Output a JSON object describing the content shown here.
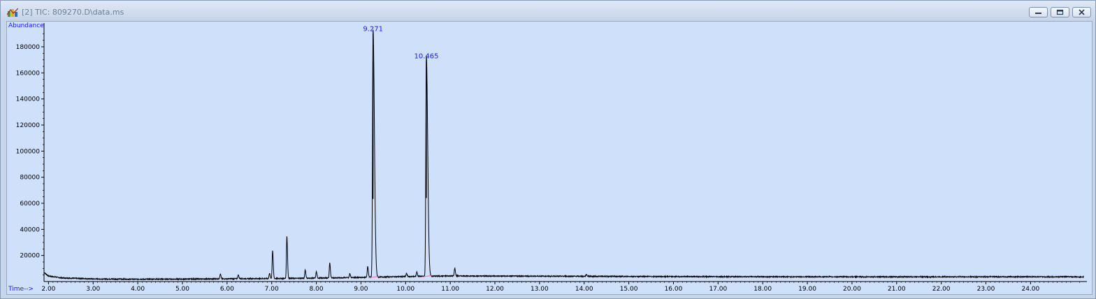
{
  "window": {
    "title": "[2] TIC: 809270.D\\data.ms"
  },
  "icons": {
    "app": "chemstation-app-icon",
    "minimize": "minimize-icon",
    "restore": "restore-icon",
    "close": "close-icon"
  },
  "colors": {
    "plot_bg": "#cfe0fb",
    "trace": "#000000",
    "label_blue": "#1a1aff",
    "integration_marker": "#ff6aa0"
  },
  "chart_data": {
    "type": "line",
    "ylabel": "Abundance",
    "xlabel": "Time-->",
    "xlim": [
      1.9,
      25.2
    ],
    "ylim": [
      0,
      195000
    ],
    "x_ticks": [
      2,
      3,
      4,
      5,
      6,
      7,
      8,
      9,
      10,
      11,
      12,
      13,
      14,
      15,
      16,
      17,
      18,
      19,
      20,
      21,
      22,
      23,
      24
    ],
    "x_tick_labels": [
      "2.00",
      "3.00",
      "4.00",
      "5.00",
      "6.00",
      "7.00",
      "8.00",
      "9.00",
      "10.00",
      "11.00",
      "12.00",
      "13.00",
      "14.00",
      "15.00",
      "16.00",
      "17.00",
      "18.00",
      "19.00",
      "20.00",
      "21.00",
      "22.00",
      "23.00",
      "24.00"
    ],
    "y_ticks": [
      20000,
      40000,
      60000,
      80000,
      100000,
      120000,
      140000,
      160000,
      180000
    ],
    "y_tick_labels": [
      "20000",
      "40000",
      "60000",
      "80000",
      "100000",
      "120000",
      "140000",
      "160000",
      "180000"
    ],
    "baseline": [
      [
        1.9,
        7000
      ],
      [
        2.0,
        4200
      ],
      [
        2.3,
        2800
      ],
      [
        3.0,
        2000
      ],
      [
        4.0,
        1800
      ],
      [
        5.0,
        1900
      ],
      [
        6.0,
        2100
      ],
      [
        7.0,
        2300
      ],
      [
        8.0,
        2600
      ],
      [
        9.0,
        3200
      ],
      [
        10.0,
        3800
      ],
      [
        11.0,
        4300
      ],
      [
        12.0,
        4200
      ],
      [
        14.0,
        4000
      ],
      [
        16.0,
        3800
      ],
      [
        18.0,
        3700
      ],
      [
        20.0,
        3600
      ],
      [
        22.0,
        3600
      ],
      [
        25.2,
        3600
      ]
    ],
    "peaks": [
      {
        "t": 5.85,
        "height": 3500
      },
      {
        "t": 6.25,
        "height": 3000
      },
      {
        "t": 6.95,
        "height": 4000
      },
      {
        "t": 7.02,
        "height": 21500
      },
      {
        "t": 7.34,
        "height": 32500
      },
      {
        "t": 7.75,
        "height": 6500
      },
      {
        "t": 8.0,
        "height": 5000
      },
      {
        "t": 8.3,
        "height": 11500
      },
      {
        "t": 8.75,
        "height": 3000
      },
      {
        "t": 9.15,
        "height": 8500
      },
      {
        "t": 9.271,
        "height": 190000
      },
      {
        "t": 10.02,
        "height": 2500
      },
      {
        "t": 10.25,
        "height": 3500
      },
      {
        "t": 10.465,
        "height": 169000
      },
      {
        "t": 11.1,
        "height": 6000
      },
      {
        "t": 14.05,
        "height": 1500
      }
    ],
    "annotations": [
      {
        "label": "9.271",
        "t": 9.271,
        "y": 190000
      },
      {
        "label": "10.465",
        "t": 10.465,
        "y": 169000
      }
    ]
  }
}
